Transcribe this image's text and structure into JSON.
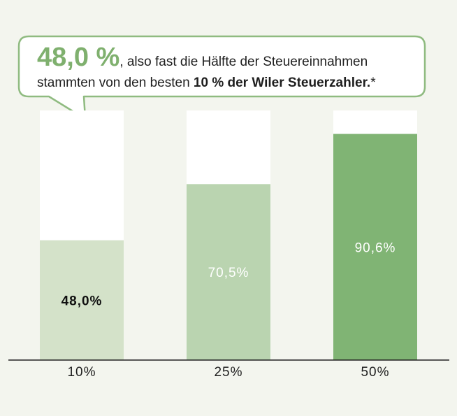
{
  "callout": {
    "highlight": "48,0 %",
    "line1_rest": ", also fast die Hälfte der Steuereinnahmen",
    "line2_start": "stammten von den besten ",
    "line2_bold": "10 % der Wiler Steuerzahler.",
    "line2_end": "*"
  },
  "chart_data": {
    "type": "bar",
    "stacked_to_total": true,
    "categories": [
      "10%",
      "25%",
      "50%"
    ],
    "values": [
      48.0,
      70.5,
      90.6
    ],
    "value_labels": [
      "48,0%",
      "70,5%",
      "90,6%"
    ],
    "ylim": [
      0,
      100
    ],
    "title": "",
    "xlabel": "",
    "ylabel": ""
  },
  "colors": {
    "background": "#f3f5ee",
    "bar_track": "#ffffff",
    "bars": [
      "#d4e2c9",
      "#bad4b0",
      "#80b474"
    ],
    "label_colors": [
      "#111111",
      "#ffffff",
      "#ffffff"
    ],
    "accent": "#7fb06e",
    "axis": "#222222"
  }
}
